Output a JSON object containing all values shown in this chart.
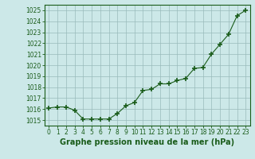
{
  "x": [
    0,
    1,
    2,
    3,
    4,
    5,
    6,
    7,
    8,
    9,
    10,
    11,
    12,
    13,
    14,
    15,
    16,
    17,
    18,
    19,
    20,
    21,
    22,
    23
  ],
  "y": [
    1016.1,
    1016.2,
    1016.2,
    1015.9,
    1015.1,
    1015.1,
    1015.1,
    1015.1,
    1015.6,
    1016.3,
    1016.6,
    1017.7,
    1017.8,
    1018.3,
    1018.3,
    1018.6,
    1018.8,
    1019.7,
    1019.8,
    1021.0,
    1021.9,
    1022.8,
    1024.5,
    1025.0
  ],
  "ylim": [
    1014.5,
    1025.5
  ],
  "yticks": [
    1015,
    1016,
    1017,
    1018,
    1019,
    1020,
    1021,
    1022,
    1023,
    1024,
    1025
  ],
  "xticks": [
    0,
    1,
    2,
    3,
    4,
    5,
    6,
    7,
    8,
    9,
    10,
    11,
    12,
    13,
    14,
    15,
    16,
    17,
    18,
    19,
    20,
    21,
    22,
    23
  ],
  "xlabel": "Graphe pression niveau de la mer (hPa)",
  "line_color": "#1a5c1a",
  "marker": "+",
  "marker_size": 4,
  "marker_linewidth": 1.2,
  "bg_color": "#cce8e8",
  "grid_color": "#99bbbb",
  "axis_color": "#1a5c1a",
  "tick_label_color": "#1a5c1a",
  "xlabel_color": "#1a5c1a",
  "tick_fontsize": 5.5,
  "xlabel_fontsize": 7.0
}
